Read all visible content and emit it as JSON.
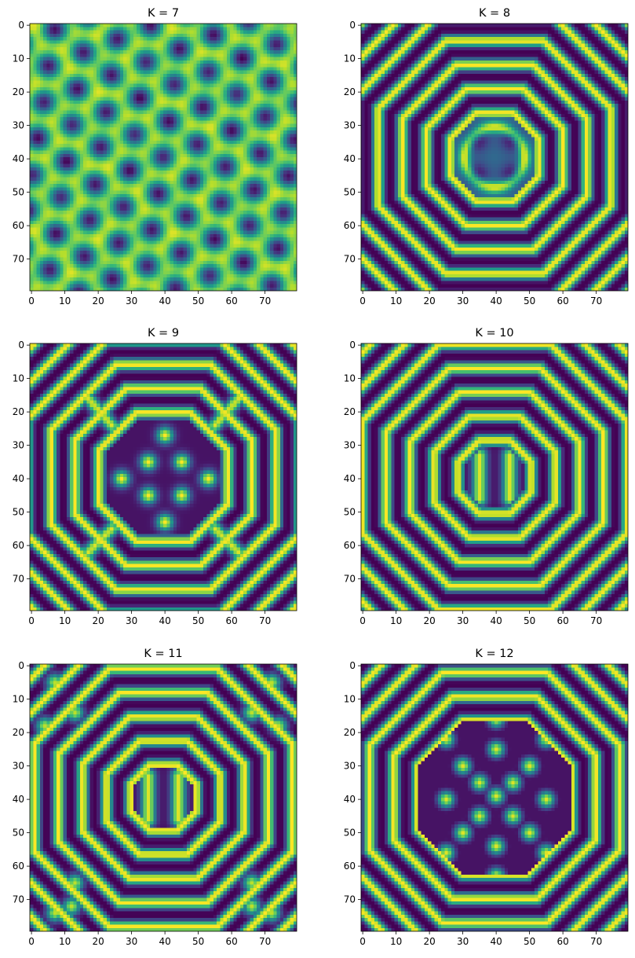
{
  "chart_data": [
    {
      "type": "heatmap",
      "title": "K = 7",
      "pattern": "hexagonal-spots",
      "colormap": "viridis",
      "grid_size": 80,
      "xlim": [
        0,
        79
      ],
      "ylim": [
        79,
        0
      ],
      "xticks": [
        0,
        10,
        20,
        30,
        40,
        50,
        60,
        70
      ],
      "yticks": [
        0,
        10,
        20,
        30,
        40,
        50,
        60,
        70
      ]
    },
    {
      "type": "heatmap",
      "title": "K = 8",
      "pattern": "octagonal-rings with four central spots",
      "colormap": "viridis",
      "grid_size": 80,
      "xlim": [
        0,
        79
      ],
      "ylim": [
        79,
        0
      ],
      "xticks": [
        0,
        10,
        20,
        30,
        40,
        50,
        60,
        70
      ],
      "yticks": [
        0,
        10,
        20,
        30,
        40,
        50,
        60,
        70
      ]
    },
    {
      "type": "heatmap",
      "title": "K = 9",
      "pattern": "octagonal-rings with central spot cluster",
      "colormap": "viridis",
      "grid_size": 80,
      "xlim": [
        0,
        79
      ],
      "ylim": [
        79,
        0
      ],
      "xticks": [
        0,
        10,
        20,
        30,
        40,
        50,
        60,
        70
      ],
      "yticks": [
        0,
        10,
        20,
        30,
        40,
        50,
        60,
        70
      ]
    },
    {
      "type": "heatmap",
      "title": "K = 10",
      "pattern": "octagonal-rings with two central bars",
      "colormap": "viridis",
      "grid_size": 80,
      "xlim": [
        0,
        79
      ],
      "ylim": [
        79,
        0
      ],
      "xticks": [
        0,
        10,
        20,
        30,
        40,
        50,
        60,
        70
      ],
      "yticks": [
        0,
        10,
        20,
        30,
        40,
        50,
        60,
        70
      ]
    },
    {
      "type": "heatmap",
      "title": "K = 11",
      "pattern": "octagonal-rings with two central bars and corner spots",
      "colormap": "viridis",
      "grid_size": 80,
      "xlim": [
        0,
        79
      ],
      "ylim": [
        79,
        0
      ],
      "xticks": [
        0,
        10,
        20,
        30,
        40,
        50,
        60,
        70
      ],
      "yticks": [
        0,
        10,
        20,
        30,
        40,
        50,
        60,
        70
      ]
    },
    {
      "type": "heatmap",
      "title": "K = 12",
      "pattern": "rounded-square rings with inner spot lattice",
      "colormap": "viridis",
      "grid_size": 80,
      "xlim": [
        0,
        79
      ],
      "ylim": [
        79,
        0
      ],
      "xticks": [
        0,
        10,
        20,
        30,
        40,
        50,
        60,
        70
      ],
      "yticks": [
        0,
        10,
        20,
        30,
        40,
        50,
        60,
        70
      ]
    }
  ]
}
